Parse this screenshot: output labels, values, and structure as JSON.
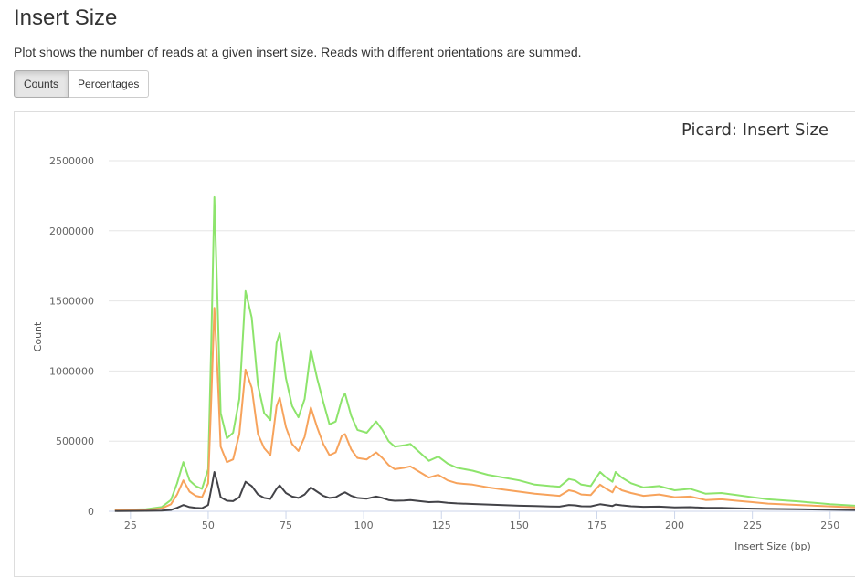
{
  "section": {
    "title": "Insert Size",
    "description": "Plot shows the number of reads at a given insert size. Reads with different orientations are summed."
  },
  "buttons": {
    "counts": "Counts",
    "percentages": "Percentages",
    "active": "counts"
  },
  "chart_data": {
    "type": "line",
    "title": "Picard: Insert Size",
    "xlabel": "Insert Size (bp)",
    "ylabel": "Count",
    "xlim": [
      18,
      258
    ],
    "ylim": [
      0,
      2500000
    ],
    "x_ticks": [
      25,
      50,
      75,
      100,
      125,
      150,
      175,
      200,
      225,
      250
    ],
    "x_tick_labels": [
      "25",
      "50",
      "75",
      "100",
      "125",
      "150",
      "175",
      "200",
      "225",
      "250"
    ],
    "y_ticks": [
      0,
      500000,
      1000000,
      1500000,
      2000000,
      2500000
    ],
    "y_tick_labels": [
      "0",
      "500000",
      "1000000",
      "1500000",
      "2000000",
      "2500000"
    ],
    "grid": true,
    "series": [
      {
        "color": "#8de46c",
        "points": [
          [
            20,
            10000
          ],
          [
            30,
            15000
          ],
          [
            35,
            30000
          ],
          [
            38,
            80000
          ],
          [
            40,
            200000
          ],
          [
            42,
            350000
          ],
          [
            44,
            220000
          ],
          [
            46,
            180000
          ],
          [
            48,
            160000
          ],
          [
            50,
            300000
          ],
          [
            51,
            1200000
          ],
          [
            52,
            2240000
          ],
          [
            53,
            1500000
          ],
          [
            54,
            700000
          ],
          [
            56,
            520000
          ],
          [
            58,
            560000
          ],
          [
            60,
            800000
          ],
          [
            62,
            1570000
          ],
          [
            64,
            1380000
          ],
          [
            66,
            900000
          ],
          [
            68,
            700000
          ],
          [
            70,
            650000
          ],
          [
            72,
            1200000
          ],
          [
            73,
            1270000
          ],
          [
            75,
            950000
          ],
          [
            77,
            750000
          ],
          [
            79,
            670000
          ],
          [
            81,
            800000
          ],
          [
            83,
            1150000
          ],
          [
            85,
            950000
          ],
          [
            87,
            780000
          ],
          [
            89,
            620000
          ],
          [
            91,
            640000
          ],
          [
            93,
            800000
          ],
          [
            94,
            840000
          ],
          [
            96,
            680000
          ],
          [
            98,
            580000
          ],
          [
            101,
            560000
          ],
          [
            104,
            640000
          ],
          [
            106,
            580000
          ],
          [
            108,
            500000
          ],
          [
            110,
            460000
          ],
          [
            113,
            470000
          ],
          [
            115,
            480000
          ],
          [
            118,
            420000
          ],
          [
            121,
            360000
          ],
          [
            124,
            390000
          ],
          [
            127,
            340000
          ],
          [
            130,
            310000
          ],
          [
            135,
            290000
          ],
          [
            140,
            260000
          ],
          [
            145,
            240000
          ],
          [
            150,
            220000
          ],
          [
            155,
            190000
          ],
          [
            160,
            180000
          ],
          [
            163,
            175000
          ],
          [
            166,
            230000
          ],
          [
            168,
            220000
          ],
          [
            170,
            190000
          ],
          [
            173,
            180000
          ],
          [
            176,
            280000
          ],
          [
            178,
            240000
          ],
          [
            180,
            210000
          ],
          [
            181,
            280000
          ],
          [
            183,
            240000
          ],
          [
            186,
            200000
          ],
          [
            190,
            170000
          ],
          [
            195,
            180000
          ],
          [
            200,
            150000
          ],
          [
            205,
            160000
          ],
          [
            210,
            125000
          ],
          [
            215,
            130000
          ],
          [
            220,
            115000
          ],
          [
            225,
            100000
          ],
          [
            230,
            85000
          ],
          [
            240,
            70000
          ],
          [
            250,
            50000
          ],
          [
            258,
            40000
          ]
        ]
      },
      {
        "color": "#f7a35c",
        "points": [
          [
            20,
            8000
          ],
          [
            30,
            10000
          ],
          [
            35,
            20000
          ],
          [
            38,
            50000
          ],
          [
            40,
            120000
          ],
          [
            42,
            220000
          ],
          [
            44,
            140000
          ],
          [
            46,
            110000
          ],
          [
            48,
            100000
          ],
          [
            50,
            200000
          ],
          [
            51,
            800000
          ],
          [
            52,
            1450000
          ],
          [
            53,
            1000000
          ],
          [
            54,
            460000
          ],
          [
            56,
            350000
          ],
          [
            58,
            370000
          ],
          [
            60,
            550000
          ],
          [
            62,
            1010000
          ],
          [
            64,
            880000
          ],
          [
            66,
            550000
          ],
          [
            68,
            450000
          ],
          [
            70,
            400000
          ],
          [
            72,
            750000
          ],
          [
            73,
            810000
          ],
          [
            75,
            600000
          ],
          [
            77,
            480000
          ],
          [
            79,
            430000
          ],
          [
            81,
            530000
          ],
          [
            83,
            740000
          ],
          [
            85,
            600000
          ],
          [
            87,
            480000
          ],
          [
            89,
            400000
          ],
          [
            91,
            420000
          ],
          [
            93,
            540000
          ],
          [
            94,
            550000
          ],
          [
            96,
            440000
          ],
          [
            98,
            380000
          ],
          [
            101,
            370000
          ],
          [
            104,
            420000
          ],
          [
            106,
            380000
          ],
          [
            108,
            330000
          ],
          [
            110,
            300000
          ],
          [
            113,
            310000
          ],
          [
            115,
            320000
          ],
          [
            118,
            280000
          ],
          [
            121,
            240000
          ],
          [
            124,
            260000
          ],
          [
            127,
            220000
          ],
          [
            130,
            200000
          ],
          [
            135,
            190000
          ],
          [
            140,
            170000
          ],
          [
            145,
            155000
          ],
          [
            150,
            140000
          ],
          [
            155,
            125000
          ],
          [
            160,
            115000
          ],
          [
            163,
            110000
          ],
          [
            166,
            150000
          ],
          [
            168,
            140000
          ],
          [
            170,
            120000
          ],
          [
            173,
            115000
          ],
          [
            176,
            190000
          ],
          [
            178,
            160000
          ],
          [
            180,
            135000
          ],
          [
            181,
            180000
          ],
          [
            183,
            150000
          ],
          [
            186,
            130000
          ],
          [
            190,
            110000
          ],
          [
            195,
            120000
          ],
          [
            200,
            100000
          ],
          [
            205,
            105000
          ],
          [
            210,
            80000
          ],
          [
            215,
            85000
          ],
          [
            220,
            75000
          ],
          [
            225,
            65000
          ],
          [
            230,
            55000
          ],
          [
            240,
            45000
          ],
          [
            250,
            35000
          ],
          [
            258,
            28000
          ]
        ]
      },
      {
        "color": "#434348",
        "points": [
          [
            20,
            2000
          ],
          [
            30,
            3000
          ],
          [
            35,
            5000
          ],
          [
            38,
            10000
          ],
          [
            40,
            25000
          ],
          [
            42,
            45000
          ],
          [
            44,
            30000
          ],
          [
            46,
            25000
          ],
          [
            48,
            22000
          ],
          [
            50,
            45000
          ],
          [
            51,
            160000
          ],
          [
            52,
            280000
          ],
          [
            53,
            200000
          ],
          [
            54,
            100000
          ],
          [
            56,
            75000
          ],
          [
            58,
            72000
          ],
          [
            60,
            100000
          ],
          [
            62,
            210000
          ],
          [
            64,
            180000
          ],
          [
            66,
            120000
          ],
          [
            68,
            95000
          ],
          [
            70,
            88000
          ],
          [
            72,
            160000
          ],
          [
            73,
            185000
          ],
          [
            75,
            130000
          ],
          [
            77,
            105000
          ],
          [
            79,
            95000
          ],
          [
            81,
            120000
          ],
          [
            83,
            170000
          ],
          [
            85,
            140000
          ],
          [
            87,
            110000
          ],
          [
            89,
            95000
          ],
          [
            91,
            100000
          ],
          [
            93,
            125000
          ],
          [
            94,
            135000
          ],
          [
            96,
            110000
          ],
          [
            98,
            95000
          ],
          [
            101,
            90000
          ],
          [
            104,
            105000
          ],
          [
            106,
            95000
          ],
          [
            108,
            80000
          ],
          [
            110,
            75000
          ],
          [
            113,
            77000
          ],
          [
            115,
            80000
          ],
          [
            118,
            72000
          ],
          [
            121,
            65000
          ],
          [
            124,
            68000
          ],
          [
            127,
            60000
          ],
          [
            130,
            56000
          ],
          [
            135,
            52000
          ],
          [
            140,
            48000
          ],
          [
            145,
            44000
          ],
          [
            150,
            40000
          ],
          [
            155,
            37000
          ],
          [
            160,
            34000
          ],
          [
            163,
            33000
          ],
          [
            166,
            45000
          ],
          [
            168,
            42000
          ],
          [
            170,
            36000
          ],
          [
            173,
            35000
          ],
          [
            176,
            50000
          ],
          [
            178,
            44000
          ],
          [
            180,
            38000
          ],
          [
            181,
            48000
          ],
          [
            183,
            42000
          ],
          [
            186,
            36000
          ],
          [
            190,
            32000
          ],
          [
            195,
            33000
          ],
          [
            200,
            28000
          ],
          [
            205,
            29000
          ],
          [
            210,
            24000
          ],
          [
            215,
            24000
          ],
          [
            220,
            21000
          ],
          [
            225,
            19000
          ],
          [
            230,
            17000
          ],
          [
            240,
            14000
          ],
          [
            250,
            11000
          ],
          [
            258,
            9000
          ]
        ]
      }
    ]
  }
}
